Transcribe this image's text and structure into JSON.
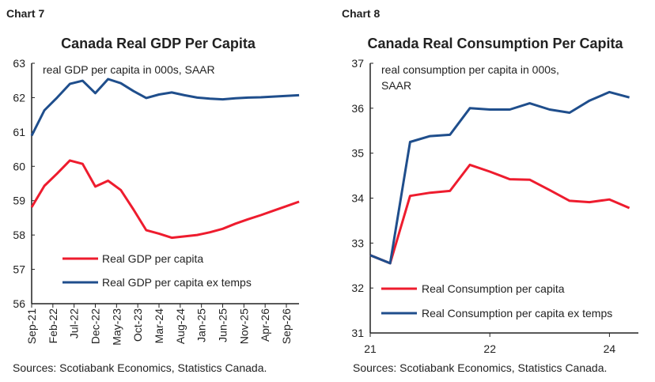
{
  "chart_data": [
    {
      "type": "line",
      "chart_number": "Chart 7",
      "title": "Canada Real GDP Per Capita",
      "note": "real GDP per capita in 000s, SAAR",
      "source": "Sources: Scotiabank Economics, Statistics Canada.",
      "ylim": [
        56,
        63
      ],
      "yticks": [
        56,
        57,
        58,
        59,
        60,
        61,
        62,
        63
      ],
      "x": [
        "Sep-21",
        "Dec-21",
        "Mar-22",
        "Jun-22",
        "Sep-22",
        "Dec-22",
        "Mar-23",
        "Jun-23",
        "Sep-23",
        "Dec-23",
        "Mar-24",
        "Jun-24",
        "Sep-24",
        "Dec-24",
        "Mar-25",
        "Jun-25",
        "Sep-25",
        "Dec-25",
        "Mar-26",
        "Jun-26",
        "Sep-26",
        "Dec-26"
      ],
      "xtick_labels": [
        "Sep-21",
        "Feb-22",
        "Jul-22",
        "Dec-22",
        "May-23",
        "Oct-23",
        "Mar-24",
        "Aug-24",
        "Jan-25",
        "Jun-25",
        "Nov-25",
        "Apr-26",
        "Sep-26"
      ],
      "grid": false,
      "legend": "bottom-center",
      "series": [
        {
          "name": "Real GDP per capita",
          "color": "#ee1c2e",
          "values": [
            58.81,
            59.43,
            59.79,
            60.17,
            60.07,
            59.41,
            59.58,
            59.31,
            58.74,
            58.14,
            58.04,
            57.92,
            57.96,
            58.0,
            58.08,
            58.18,
            58.33,
            58.46,
            58.58,
            58.71,
            58.84,
            58.97
          ]
        },
        {
          "name": "Real GDP per capita ex temps",
          "color": "#1f4e8c",
          "values": [
            60.89,
            61.63,
            62.0,
            62.4,
            62.49,
            62.13,
            62.54,
            62.42,
            62.19,
            61.99,
            62.09,
            62.15,
            62.07,
            62.0,
            61.97,
            61.95,
            61.98,
            62.0,
            62.01,
            62.03,
            62.05,
            62.07
          ]
        }
      ]
    },
    {
      "type": "line",
      "chart_number": "Chart 8",
      "title": "Canada Real Consumption Per Capita",
      "note_lines": [
        "real consumption per capita in 000s,",
        "SAAR"
      ],
      "source": "Sources: Scotiabank Economics, Statistics Canada.",
      "ylim": [
        31,
        37
      ],
      "yticks": [
        31,
        32,
        33,
        34,
        35,
        36,
        37
      ],
      "xtick_labels": [
        {
          "label": "21",
          "index": 0
        },
        {
          "label": "22",
          "index": 6
        },
        {
          "label": "24",
          "index": 12
        }
      ],
      "grid": false,
      "legend": "bottom-left",
      "series": [
        {
          "name": "Real Consumption per capita",
          "color": "#ee1c2e",
          "values": [
            32.73,
            32.55,
            34.05,
            34.12,
            34.16,
            34.74,
            34.59,
            34.42,
            34.41,
            34.18,
            33.94,
            33.91,
            33.97,
            33.78
          ]
        },
        {
          "name": "Real Consumption per capita ex temps",
          "color": "#1f4e8c",
          "values": [
            32.73,
            32.55,
            35.25,
            35.38,
            35.41,
            36.0,
            35.97,
            35.97,
            36.11,
            35.97,
            35.9,
            36.17,
            36.36,
            36.24
          ]
        }
      ]
    }
  ]
}
